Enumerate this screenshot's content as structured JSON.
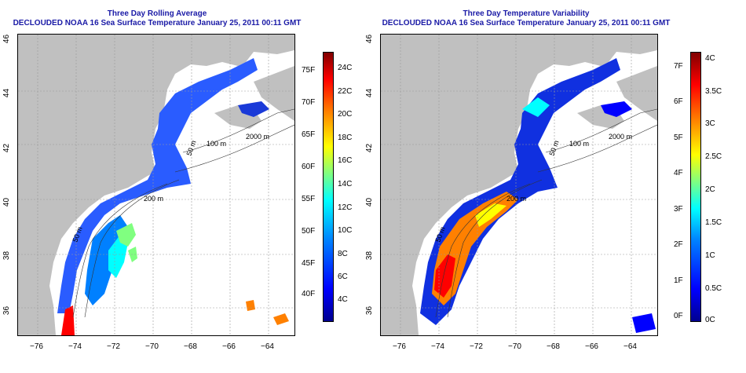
{
  "panels": [
    {
      "title_line1": "Three Day Rolling Average",
      "title_line2": "DECLOUDED NOAA 16 Sea Surface Temperature January 25, 2011 00:11 GMT",
      "latitude_ticks": [
        "46",
        "44",
        "42",
        "40",
        "38",
        "36"
      ],
      "longitude_ticks": [
        "−76",
        "−74",
        "−72",
        "−70",
        "−68",
        "−66",
        "−64"
      ],
      "contour_labels": [
        "50 m",
        "100 m",
        "200 m",
        "2000 m",
        "50 m"
      ],
      "colorbar_left_ticks": [
        "75F",
        "70F",
        "65F",
        "60F",
        "55F",
        "50F",
        "45F",
        "40F"
      ],
      "colorbar_right_ticks": [
        "24C",
        "22C",
        "20C",
        "18C",
        "16C",
        "14C",
        "12C",
        "10C",
        "8C",
        "6C",
        "4C"
      ]
    },
    {
      "title_line1": "Three Day Temperature Variability",
      "title_line2": "DECLOUDED NOAA 16 Sea Surface Temperature January 25, 2011 00:11 GMT",
      "latitude_ticks": [
        "46",
        "44",
        "42",
        "40",
        "38",
        "36"
      ],
      "longitude_ticks": [
        "−76",
        "−74",
        "−72",
        "−70",
        "−68",
        "−66",
        "−64"
      ],
      "contour_labels": [
        "50 m",
        "100 m",
        "200 m",
        "2000 m",
        "50 m"
      ],
      "colorbar_left_ticks": [
        "7F",
        "6F",
        "5F",
        "4F",
        "3F",
        "2F",
        "1F",
        "0F"
      ],
      "colorbar_right_ticks": [
        "4C",
        "3.5C",
        "3C",
        "2.5C",
        "2C",
        "1.5C",
        "1C",
        "0.5C",
        "0C"
      ]
    }
  ],
  "colors": {
    "title": "#1a1aa6",
    "land": "#c0c0c0",
    "colormap": [
      "#00008f",
      "#0000ff",
      "#0080ff",
      "#00ffff",
      "#80ff80",
      "#ffff00",
      "#ff8000",
      "#ff0000",
      "#800000"
    ]
  }
}
